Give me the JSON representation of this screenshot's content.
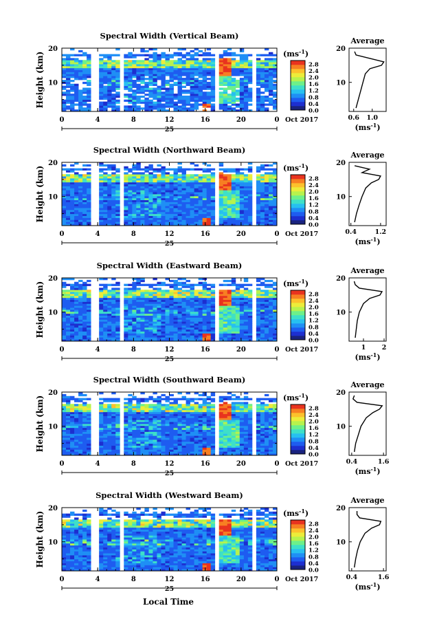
{
  "figure": {
    "xlabel": "Local Time",
    "date_label": "25",
    "month_label": "Oct 2017"
  },
  "chart_data": [
    {
      "type": "heatmap",
      "title": "Spectral Width (Vertical Beam)",
      "ylabel": "Height (km)",
      "xlabel": "Local Time",
      "x_ticks": [
        "0",
        "4",
        "8",
        "12",
        "16",
        "20",
        "0"
      ],
      "xlim": [
        0,
        24
      ],
      "y_ticks": [
        "20",
        "10"
      ],
      "ylim": [
        1.5,
        20
      ],
      "colorbar": {
        "unit": "(ms",
        "unit_exp": "-1",
        "unit_close": ")",
        "ticks": [
          "2.8",
          "2.4",
          "2.0",
          "1.6",
          "1.2",
          "0.8",
          "0.4",
          "0.0"
        ],
        "range": [
          0,
          3.0
        ]
      },
      "average_profile": {
        "title": "Average",
        "x_ticks": [
          "0.6",
          "1.0"
        ],
        "xlim": [
          0.5,
          1.3
        ],
        "xlabel": "(ms",
        "xlabel_exp": "-1",
        "xlabel_close": ")",
        "y_ticks": [
          "20",
          "10"
        ],
        "height_km": [
          2.5,
          5,
          7.5,
          10,
          12.5,
          14,
          15,
          16,
          17,
          18,
          19
        ],
        "width_ms": [
          0.65,
          0.7,
          0.75,
          0.8,
          0.85,
          0.95,
          1.2,
          1.25,
          0.95,
          0.65,
          0.62
        ]
      }
    },
    {
      "type": "heatmap",
      "title": "Spectral Width (Northward Beam)",
      "ylabel": "Height (km)",
      "xlabel": "Local Time",
      "x_ticks": [
        "0",
        "4",
        "8",
        "12",
        "16",
        "20",
        "0"
      ],
      "xlim": [
        0,
        24
      ],
      "y_ticks": [
        "20",
        "10"
      ],
      "ylim": [
        1.5,
        20
      ],
      "colorbar": {
        "unit": "(ms",
        "unit_exp": "-1",
        "unit_close": ")",
        "ticks": [
          "2.8",
          "2.4",
          "2.0",
          "1.6",
          "1.2",
          "0.8",
          "0.4",
          "0.0"
        ],
        "range": [
          0,
          3.0
        ]
      },
      "average_profile": {
        "title": "Average",
        "x_ticks": [
          "0.4",
          "1.2"
        ],
        "xlim": [
          0.35,
          1.35
        ],
        "xlabel": "(ms",
        "xlabel_exp": "-1",
        "xlabel_close": ")",
        "y_ticks": [
          "20",
          "10"
        ],
        "height_km": [
          2.5,
          5,
          7.5,
          10,
          12.5,
          14,
          15,
          16,
          17,
          18,
          19
        ],
        "width_ms": [
          0.5,
          0.55,
          0.62,
          0.7,
          0.8,
          0.95,
          1.15,
          1.2,
          0.7,
          0.9,
          0.5
        ]
      }
    },
    {
      "type": "heatmap",
      "title": "Spectral Width (Eastward Beam)",
      "ylabel": "Height (km)",
      "xlabel": "Local Time",
      "x_ticks": [
        "0",
        "4",
        "8",
        "12",
        "16",
        "20",
        "0"
      ],
      "xlim": [
        0,
        24
      ],
      "y_ticks": [
        "20",
        "10"
      ],
      "ylim": [
        1.5,
        20
      ],
      "colorbar": {
        "unit": "(ms",
        "unit_exp": "-1",
        "unit_close": ")",
        "ticks": [
          "2.8",
          "2.4",
          "2.0",
          "1.6",
          "1.2",
          "0.8",
          "0.4",
          "0.0"
        ],
        "range": [
          0,
          3.0
        ]
      },
      "average_profile": {
        "title": "Average",
        "x_ticks": [
          "1",
          "2"
        ],
        "xlim": [
          0.3,
          2.1
        ],
        "xlabel": "(ms",
        "xlabel_exp": "-1",
        "xlabel_close": ")",
        "y_ticks": [
          "20",
          "10"
        ],
        "height_km": [
          2.5,
          5,
          7.5,
          10,
          12.5,
          14,
          15,
          16,
          17,
          18,
          19
        ],
        "width_ms": [
          0.6,
          0.65,
          0.7,
          0.8,
          1.0,
          1.3,
          1.8,
          1.9,
          0.8,
          0.6,
          0.55
        ]
      }
    },
    {
      "type": "heatmap",
      "title": "Spectral Width (Southward Beam)",
      "ylabel": "Height (km)",
      "xlabel": "Local Time",
      "x_ticks": [
        "0",
        "4",
        "8",
        "12",
        "16",
        "20",
        "0"
      ],
      "xlim": [
        0,
        24
      ],
      "y_ticks": [
        "20",
        "10"
      ],
      "ylim": [
        1.5,
        20
      ],
      "colorbar": {
        "unit": "(ms",
        "unit_exp": "-1",
        "unit_close": ")",
        "ticks": [
          "2.8",
          "2.4",
          "2.0",
          "1.6",
          "1.2",
          "0.8",
          "0.4",
          "0.0"
        ],
        "range": [
          0,
          3.0
        ]
      },
      "average_profile": {
        "title": "Average",
        "x_ticks": [
          "0.4",
          "1.6"
        ],
        "xlim": [
          0.3,
          1.7
        ],
        "xlabel": "(ms",
        "xlabel_exp": "-1",
        "xlabel_close": ")",
        "y_ticks": [
          "20",
          "10"
        ],
        "height_km": [
          2.5,
          5,
          7.5,
          10,
          12.5,
          14,
          15,
          16,
          17,
          18,
          19
        ],
        "width_ms": [
          0.5,
          0.55,
          0.65,
          0.75,
          0.95,
          1.2,
          1.45,
          1.55,
          0.6,
          0.45,
          0.5
        ]
      }
    },
    {
      "type": "heatmap",
      "title": "Spectral Width (Westward Beam)",
      "ylabel": "Height (km)",
      "xlabel": "Local Time",
      "x_ticks": [
        "0",
        "4",
        "8",
        "12",
        "16",
        "20",
        "0"
      ],
      "xlim": [
        0,
        24
      ],
      "y_ticks": [
        "20",
        "10"
      ],
      "ylim": [
        1.5,
        20
      ],
      "colorbar": {
        "unit": "(ms",
        "unit_exp": "-1",
        "unit_close": ")",
        "ticks": [
          "2.8",
          "2.4",
          "2.0",
          "1.6",
          "1.2",
          "0.8",
          "0.4",
          "0.0"
        ],
        "range": [
          0,
          3.0
        ]
      },
      "average_profile": {
        "title": "Average",
        "x_ticks": [
          "0.4",
          "1.6"
        ],
        "xlim": [
          0.3,
          1.7
        ],
        "xlabel": "(ms",
        "xlabel_exp": "-1",
        "xlabel_close": ")",
        "y_ticks": [
          "20",
          "10"
        ],
        "height_km": [
          2.5,
          5,
          7.5,
          10,
          12.5,
          14,
          15,
          16,
          17,
          18,
          19
        ],
        "width_ms": [
          0.5,
          0.55,
          0.62,
          0.72,
          0.9,
          1.15,
          1.45,
          1.5,
          0.7,
          0.6,
          0.6
        ]
      }
    }
  ]
}
